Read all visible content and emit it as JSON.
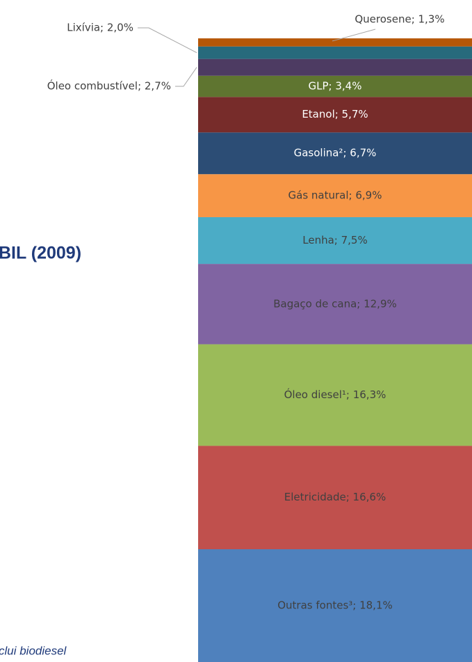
{
  "chart_data": {
    "type": "stacked-bar",
    "title": "BIL (2009)",
    "footnote": "clui biodiesel",
    "values": [
      18.1,
      16.6,
      16.3,
      12.9,
      7.5,
      6.9,
      6.7,
      5.7,
      3.4,
      2.7,
      2.0,
      1.3
    ],
    "value_labels": [
      "Outras fontes³; 18,1%",
      "Eletricidade; 16,6%",
      "Óleo diesel¹; 16,3%",
      "Bagaço de cana; 12,9%",
      "Lenha; 7,5%",
      "Gás natural; 6,9%",
      "Gasolina²; 6,7%",
      "Etanol; 5,7%",
      "GLP; 3,4%",
      "Óleo combustível; 2,7%",
      "Lixívia; 2,0%",
      "Querosene; 1,3%"
    ],
    "colors": [
      "#4f81bd",
      "#c0504d",
      "#9bbb59",
      "#8064a2",
      "#4bacc6",
      "#f79646",
      "#2c4d75",
      "#772c2a",
      "#5f7530",
      "#4d3b62",
      "#276a7c",
      "#b65708"
    ],
    "label_colors": [
      "#404040",
      "#404040",
      "#404040",
      "#404040",
      "#404040",
      "#404040",
      "#ffffff",
      "#ffffff",
      "#ffffff",
      "#404040",
      "#404040",
      "#404040"
    ]
  }
}
